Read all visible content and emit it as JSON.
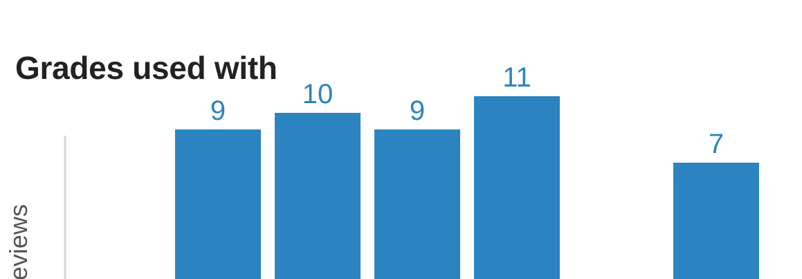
{
  "section": {
    "title": "Grades used with"
  },
  "chart_data": {
    "type": "bar",
    "title": "Grades used with",
    "ylabel": "Reviews",
    "ylabel_visible": "eviews",
    "xlabel": "",
    "categories": [
      "",
      "",
      "",
      "",
      "",
      "",
      ""
    ],
    "values": [
      9,
      10,
      9,
      11,
      null,
      7,
      null
    ],
    "data_labels": [
      "9",
      "10",
      "9",
      "11",
      "",
      "7",
      ""
    ],
    "ylim": [
      0,
      11
    ],
    "grid": false,
    "legend": "none",
    "colors": {
      "bar": "#2b84c0",
      "label": "#2b84c0",
      "axis": "#d6d6d6",
      "title": "#222222",
      "ylabel": "#555555"
    }
  }
}
